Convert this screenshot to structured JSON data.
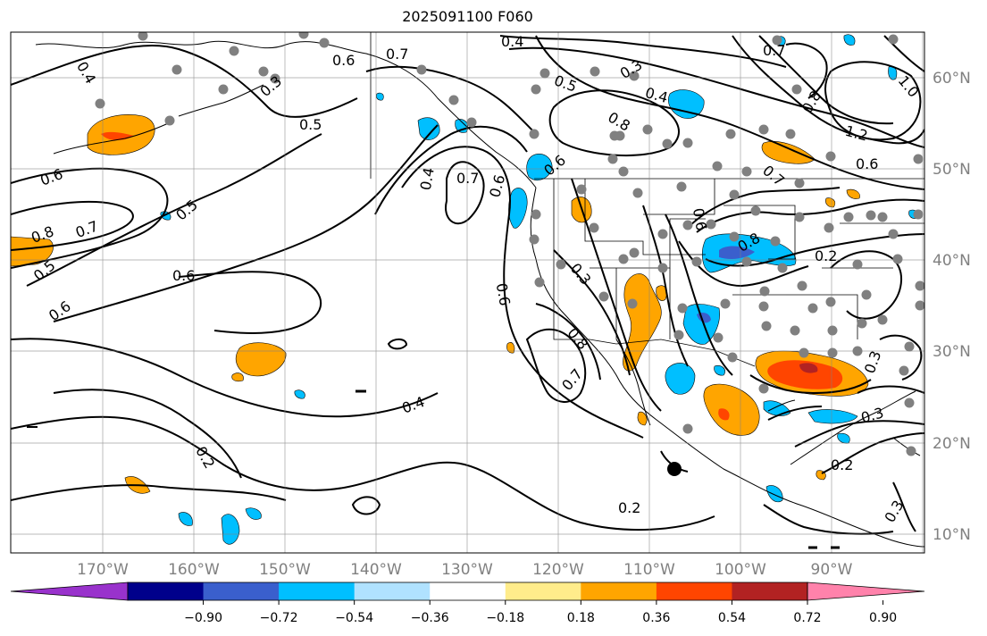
{
  "title": "2025091100 F060",
  "lon_labels": [
    "170°W",
    "160°W",
    "150°W",
    "140°W",
    "130°W",
    "120°W",
    "110°W",
    "100°W",
    "90°W"
  ],
  "lat_labels": [
    "60°N",
    "50°N",
    "40°N",
    "30°N",
    "20°N",
    "10°N"
  ],
  "colorbar": {
    "ticks": [
      "−0.90",
      "−0.72",
      "−0.54",
      "−0.36",
      "−0.18",
      "0.18",
      "0.36",
      "0.54",
      "0.72",
      "0.90"
    ],
    "colors": [
      "#9932CC",
      "#00008B",
      "#3A5FCD",
      "#00BFFF",
      "#B0E2FF",
      "#FFFFFF",
      "#FFEC8B",
      "#FFA500",
      "#FF4500",
      "#B22222",
      "#FF82AB"
    ]
  },
  "contour_labels": [
    "0.4",
    "0.7",
    "0.6",
    "0.3",
    "0.5",
    "0.4",
    "0.8",
    "0.7",
    "0.8",
    "1.0",
    "0.5",
    "0.4",
    "0.8",
    "1.2",
    "0.6",
    "0.6",
    "0.7",
    "0.6",
    "0.4",
    "0.5",
    "0.7",
    "0.6",
    "0.8",
    "0.7",
    "0.6",
    "0.5",
    "0.6",
    "0.3",
    "0.6",
    "0.8",
    "0.2",
    "0.8",
    "0.7",
    "0.4",
    "0.3",
    "0.3",
    "0.2",
    "0.2",
    "0.2",
    "0.6",
    "0.3"
  ]
}
